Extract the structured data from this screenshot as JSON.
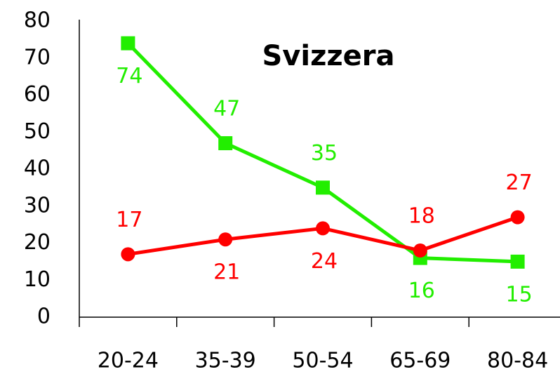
{
  "chart_data": {
    "type": "line",
    "title": "Svizzera",
    "categories": [
      "20-24",
      "35-39",
      "50-54",
      "65-69",
      "80-84"
    ],
    "series": [
      {
        "color": "#22ee00",
        "marker": "square",
        "values": [
          74,
          47,
          35,
          16,
          15
        ]
      },
      {
        "color": "#ff0000",
        "marker": "circle",
        "values": [
          17,
          21,
          24,
          18,
          27
        ]
      }
    ],
    "ylim": [
      0,
      80
    ],
    "yticks": [
      0,
      10,
      20,
      30,
      40,
      50,
      60,
      70,
      80
    ],
    "grid": false
  }
}
